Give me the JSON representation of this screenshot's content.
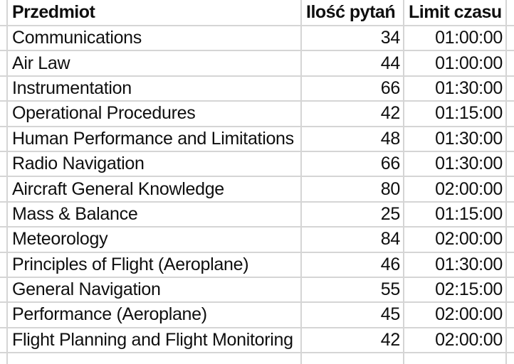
{
  "table": {
    "columns": [
      {
        "label": "Przedmiot"
      },
      {
        "label": "Ilość pytań"
      },
      {
        "label": "Limit czasu"
      }
    ],
    "rows": [
      {
        "subject": "Communications",
        "questions": 34,
        "time_limit": "01:00:00"
      },
      {
        "subject": "Air Law",
        "questions": 44,
        "time_limit": "01:00:00"
      },
      {
        "subject": "Instrumentation",
        "questions": 66,
        "time_limit": "01:30:00"
      },
      {
        "subject": "Operational Procedures",
        "questions": 42,
        "time_limit": "01:15:00"
      },
      {
        "subject": "Human Performance and Limitations",
        "questions": 48,
        "time_limit": "01:30:00"
      },
      {
        "subject": "Radio Navigation",
        "questions": 66,
        "time_limit": "01:30:00"
      },
      {
        "subject": "Aircraft General Knowledge",
        "questions": 80,
        "time_limit": "02:00:00"
      },
      {
        "subject": "Mass & Balance",
        "questions": 25,
        "time_limit": "01:15:00"
      },
      {
        "subject": "Meteorology",
        "questions": 84,
        "time_limit": "02:00:00"
      },
      {
        "subject": "Principles of Flight (Aeroplane)",
        "questions": 46,
        "time_limit": "01:30:00"
      },
      {
        "subject": "General Navigation",
        "questions": 55,
        "time_limit": "02:15:00"
      },
      {
        "subject": "Performance (Aeroplane)",
        "questions": 45,
        "time_limit": "02:00:00"
      },
      {
        "subject": "Flight Planning and Flight Monitoring",
        "questions": 42,
        "time_limit": "02:00:00"
      }
    ]
  },
  "colors": {
    "gridline": "#d5d5d5",
    "text": "#0f0f0f",
    "background": "#ffffff"
  }
}
